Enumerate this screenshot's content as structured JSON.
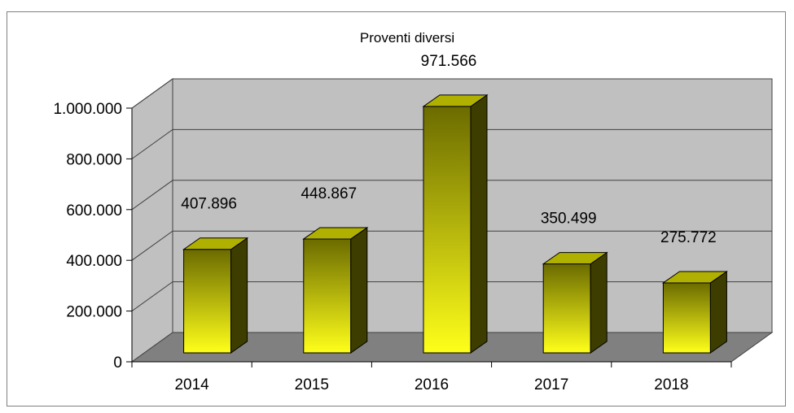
{
  "chart_data": {
    "type": "bar",
    "title": "Proventi diversi",
    "xlabel": "",
    "ylabel": "",
    "categories": [
      "2014",
      "2015",
      "2016",
      "2017",
      "2018"
    ],
    "values": [
      407896,
      448867,
      971566,
      350499,
      275772
    ],
    "value_labels": [
      "407.896",
      "448.867",
      "971.566",
      "350.499",
      "275.772"
    ],
    "ylim": [
      0,
      1000000
    ],
    "y_ticks": [
      0,
      200000,
      400000,
      600000,
      800000,
      1000000
    ],
    "y_tick_labels": [
      "0",
      "200.000",
      "400.000",
      "600.000",
      "800.000",
      "1.000.000"
    ],
    "grid": true,
    "legend": "none",
    "style": "3d",
    "colors": {
      "bar_top": "#6b6b00",
      "bar_bottom": "#ffff1a",
      "bar_side": "#3d3d00",
      "bar_cap": "#b0b000",
      "wall": "#c0c0c0",
      "floor": "#808080",
      "grid": "#404040"
    }
  }
}
